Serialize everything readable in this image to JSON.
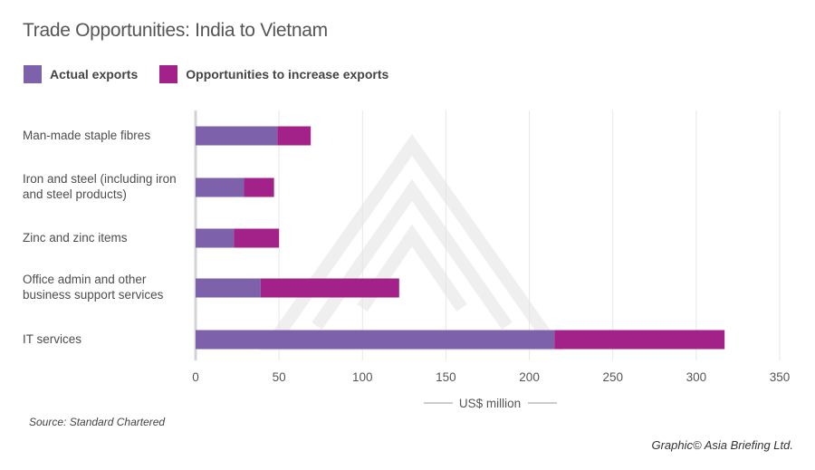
{
  "chart_data": {
    "type": "bar",
    "orientation": "horizontal",
    "stacked": true,
    "title": "Trade Opportunities: India to Vietnam",
    "categories": [
      "Man-made staple fibres",
      "Iron and steel (including iron and steel products)",
      "Zinc and zinc items",
      "Office admin and other business support services",
      "IT services"
    ],
    "category_lines": [
      [
        "Man-made staple fibres"
      ],
      [
        "Iron and steel (including iron",
        "and steel products)"
      ],
      [
        "Zinc and zinc items"
      ],
      [
        "Office admin and other",
        "business support services"
      ],
      [
        "IT services"
      ]
    ],
    "series": [
      {
        "name": "Actual exports",
        "color": "#7d62ab",
        "values": [
          49,
          29,
          23,
          39,
          215
        ]
      },
      {
        "name": "Opportunities to increase exports",
        "color": "#a3228a",
        "values": [
          20,
          18,
          27,
          83,
          102
        ]
      }
    ],
    "xlabel": "US$ million",
    "xlim": [
      0,
      350
    ],
    "xticks": [
      0,
      50,
      100,
      150,
      200,
      250,
      300,
      350
    ],
    "grid": true,
    "legend_position": "top-left"
  },
  "footer": {
    "source": "Source: Standard Chartered",
    "credit": "Graphic© Asia Briefing Ltd."
  }
}
